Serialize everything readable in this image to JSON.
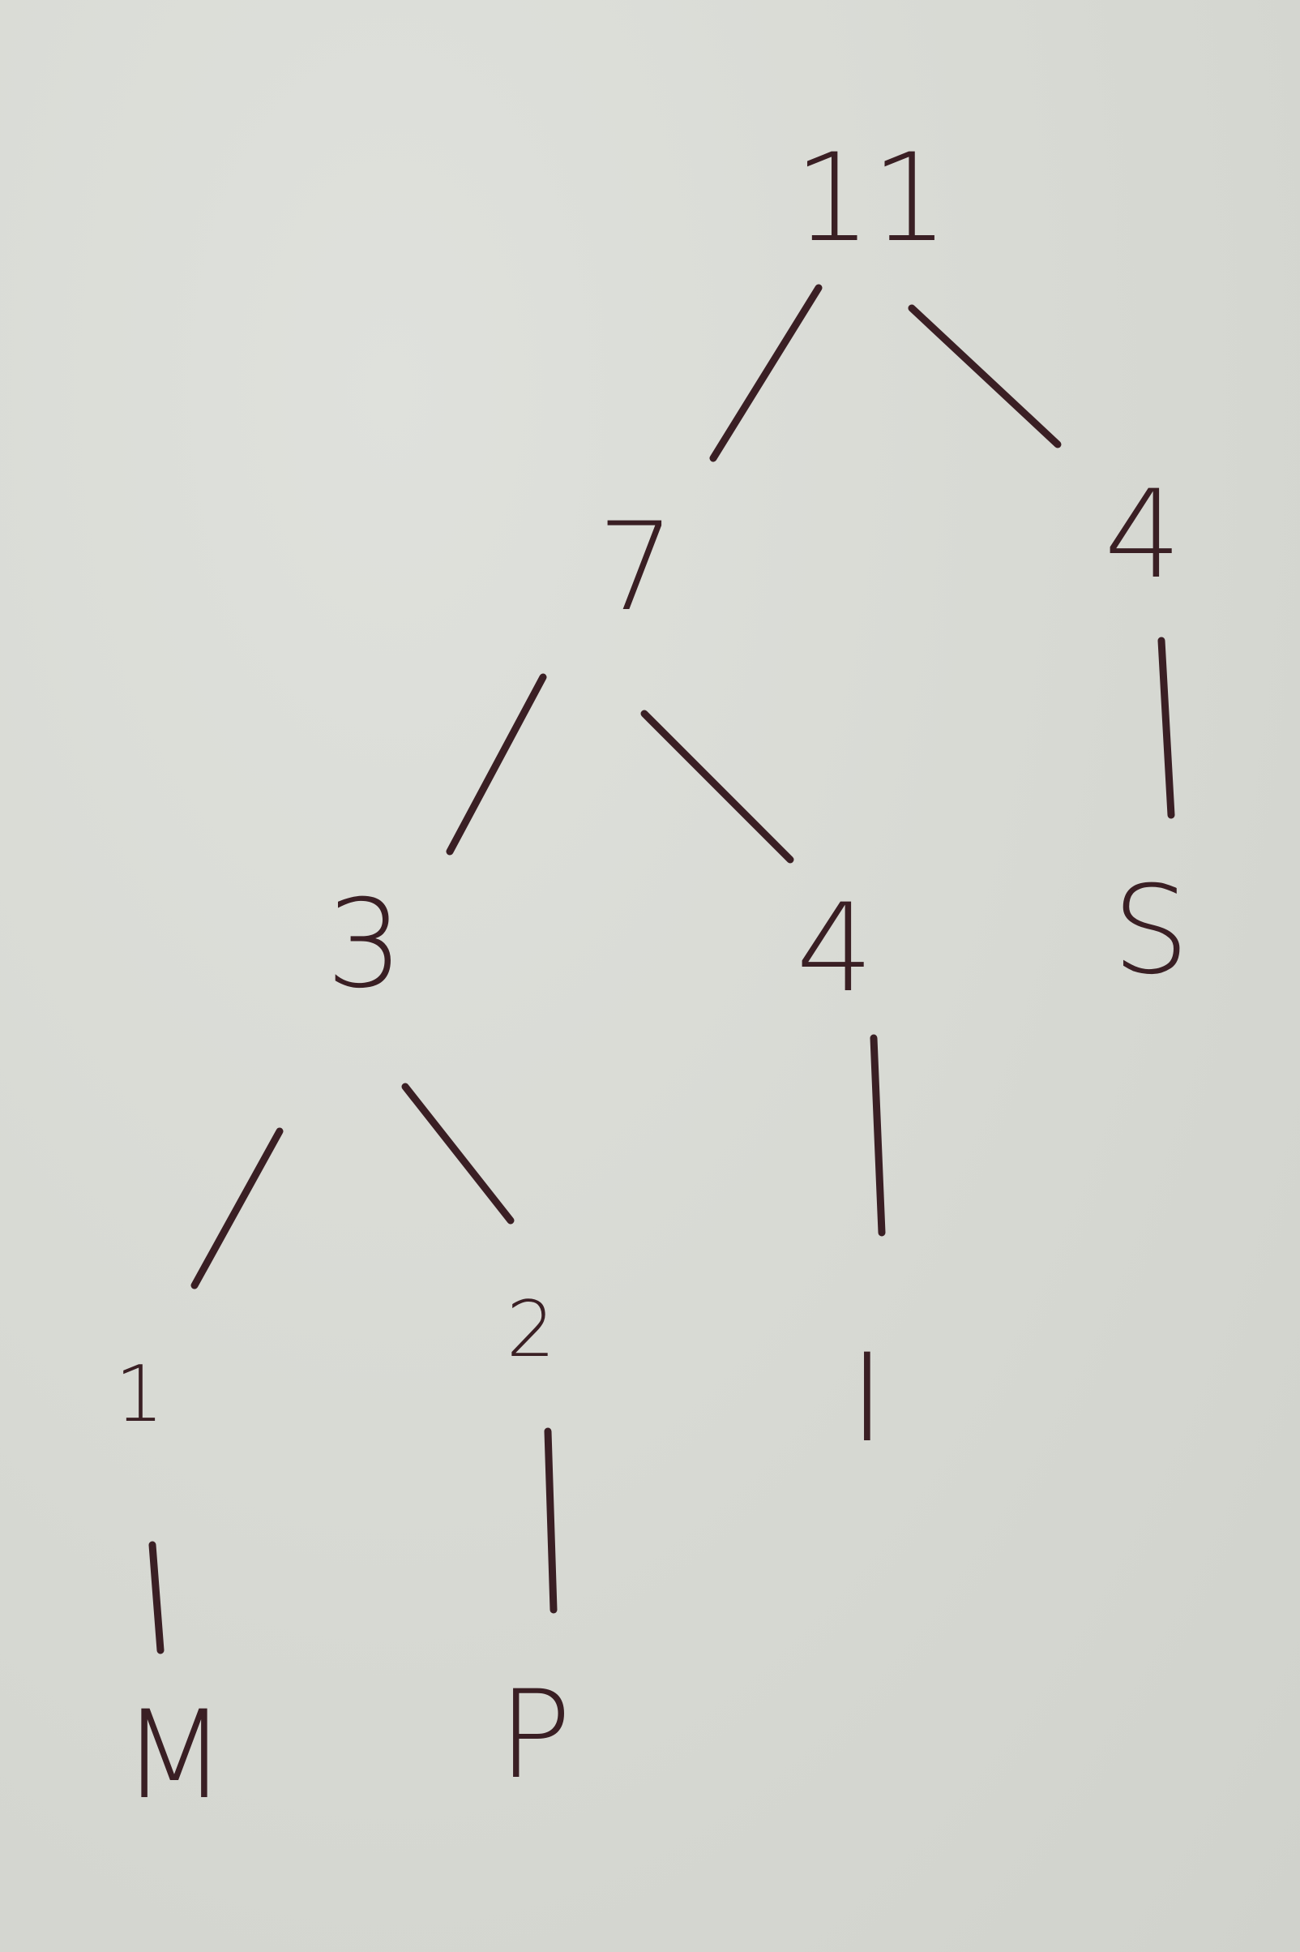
{
  "tree": {
    "nodes": [
      {
        "id": "root",
        "label": "11"
      },
      {
        "id": "n7",
        "label": "7"
      },
      {
        "id": "n4-right",
        "label": "4"
      },
      {
        "id": "n3",
        "label": "3"
      },
      {
        "id": "n4-mid",
        "label": "4"
      },
      {
        "id": "leaf-s",
        "label": "S"
      },
      {
        "id": "n1",
        "label": "1"
      },
      {
        "id": "n2",
        "label": "2"
      },
      {
        "id": "leaf-i",
        "label": "I"
      },
      {
        "id": "leaf-m",
        "label": "M"
      },
      {
        "id": "leaf-p",
        "label": "P"
      }
    ],
    "edges": [
      [
        "root",
        "n7"
      ],
      [
        "root",
        "n4-right"
      ],
      [
        "n7",
        "n3"
      ],
      [
        "n7",
        "n4-mid"
      ],
      [
        "n4-right",
        "leaf-s"
      ],
      [
        "n3",
        "n1"
      ],
      [
        "n3",
        "n2"
      ],
      [
        "n4-mid",
        "leaf-i"
      ],
      [
        "n1",
        "leaf-m"
      ],
      [
        "n2",
        "leaf-p"
      ]
    ]
  },
  "colors": {
    "ink": "#3a1f24",
    "paper": "#d9dbd6"
  }
}
